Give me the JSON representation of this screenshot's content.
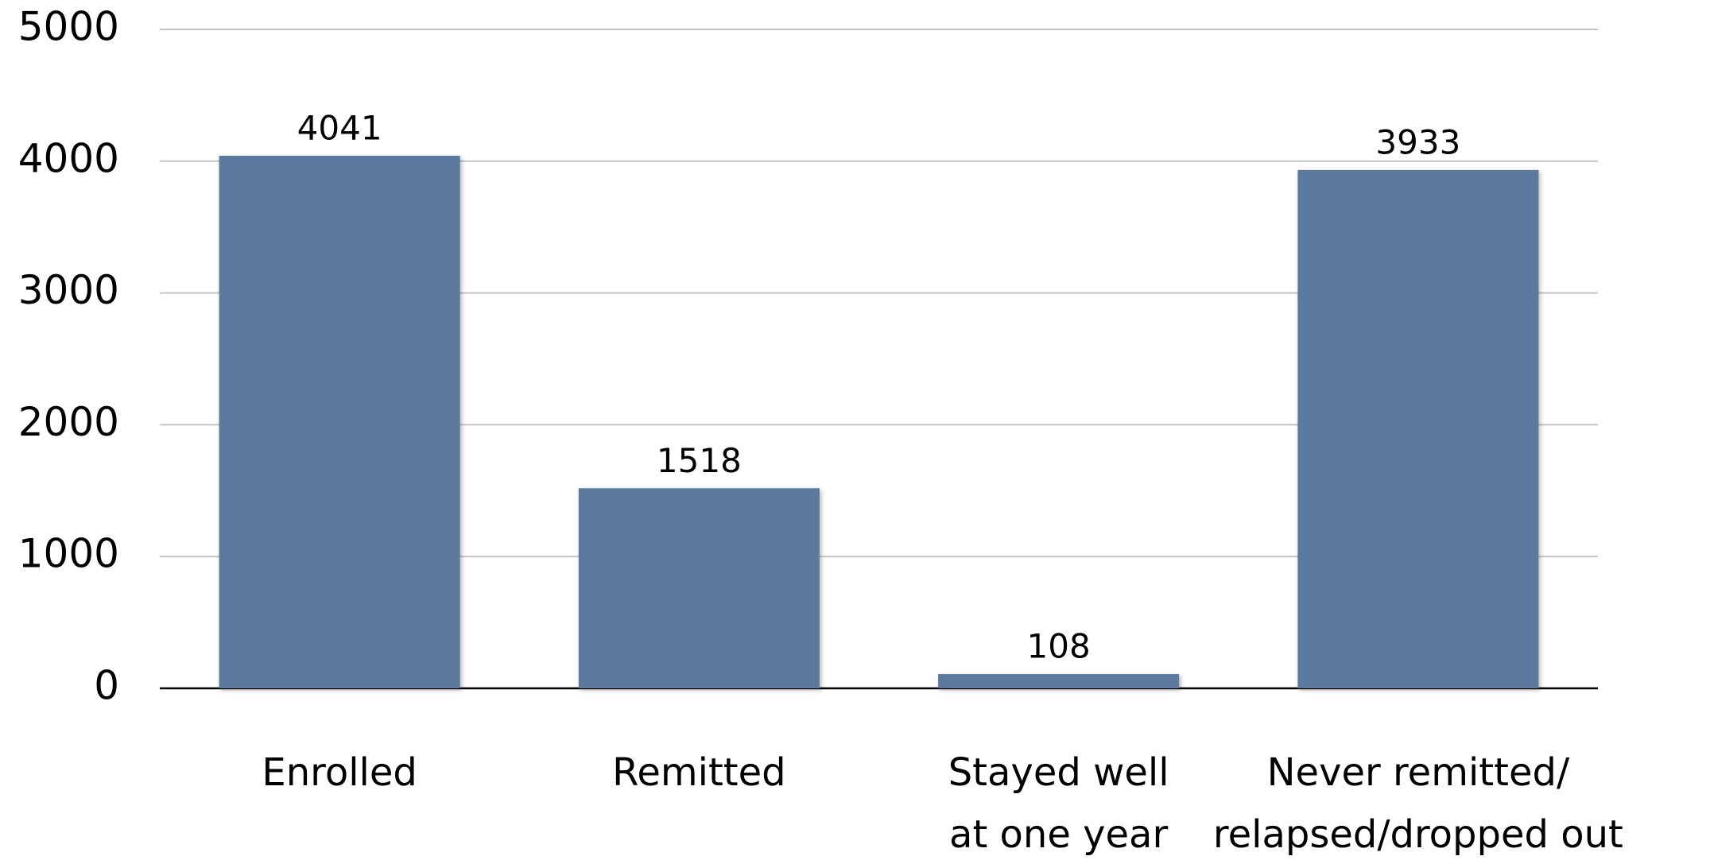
{
  "chart_data": {
    "type": "bar",
    "categories": [
      [
        "Enrolled"
      ],
      [
        "Remitted"
      ],
      [
        "Stayed well",
        "at  one year"
      ],
      [
        "Never remitted/",
        "relapsed/dropped out"
      ]
    ],
    "values": [
      4041,
      1518,
      108,
      3933
    ],
    "color": "#5b7a9e",
    "ylim": [
      0,
      5000
    ],
    "yticks": [
      0,
      1000,
      2000,
      3000,
      4000,
      5000
    ],
    "grid": true
  }
}
